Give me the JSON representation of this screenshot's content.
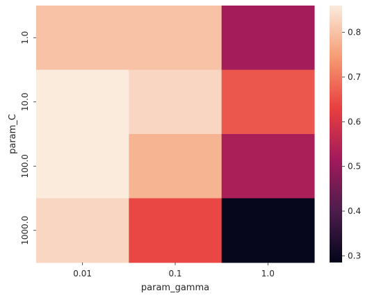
{
  "chart_data": {
    "type": "heatmap",
    "xlabel": "param_gamma",
    "ylabel": "param_C",
    "x_categories": [
      "0.01",
      "0.1",
      "1.0"
    ],
    "y_categories": [
      "1.0",
      "10.0",
      "100.0",
      "1000.0"
    ],
    "values": [
      [
        0.8,
        0.8,
        0.52
      ],
      [
        0.86,
        0.83,
        0.66
      ],
      [
        0.86,
        0.78,
        0.53
      ],
      [
        0.83,
        0.64,
        0.29
      ]
    ],
    "colorbar": {
      "range": [
        0.285,
        0.86
      ],
      "ticks": [
        "0.3",
        "0.4",
        "0.5",
        "0.6",
        "0.7",
        "0.8"
      ],
      "tick_values": [
        0.3,
        0.4,
        0.5,
        0.6,
        0.7,
        0.8
      ],
      "colormap_stops": [
        "#03051A",
        "#4C1D4B",
        "#A11A5B",
        "#E83F3F",
        "#F69C73",
        "#FAEBDD"
      ]
    }
  }
}
